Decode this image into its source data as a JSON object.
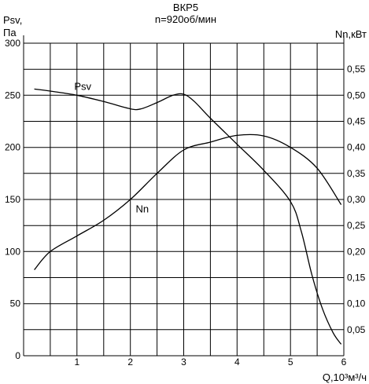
{
  "chart_data": {
    "type": "line",
    "title": "ВКР5",
    "subtitle": "n=920об/мин",
    "y_left_label": [
      "Psv,",
      "Па"
    ],
    "y_right_label": "Nn,кВт",
    "x_label": "Q,10³м³/ч",
    "x_range": [
      0,
      6
    ],
    "x_ticks": [
      "1",
      "2",
      "3",
      "4",
      "5",
      "6"
    ],
    "y_left_range": [
      0,
      300
    ],
    "y_left_ticks": [
      "0",
      "50",
      "100",
      "150",
      "200",
      "250",
      "300"
    ],
    "y_right_range": [
      0,
      0.6
    ],
    "y_right_ticks": [
      "0,05",
      "0,10",
      "0,15",
      "0,20",
      "0,25",
      "0,30",
      "0,35",
      "0,40",
      "0,45",
      "0,50",
      "0,55"
    ],
    "grid": true,
    "line_color": "#000000",
    "series": [
      {
        "name": "Psv",
        "axis": "left",
        "label_at": [
          0.95,
          255
        ],
        "points": [
          [
            0.2,
            256
          ],
          [
            0.5,
            254
          ],
          [
            1.0,
            250
          ],
          [
            1.5,
            244
          ],
          [
            2.0,
            237
          ],
          [
            2.2,
            237
          ],
          [
            2.5,
            243
          ],
          [
            2.8,
            250
          ],
          [
            3.0,
            251
          ],
          [
            3.2,
            244
          ],
          [
            3.5,
            228
          ],
          [
            4.0,
            203
          ],
          [
            4.5,
            178
          ],
          [
            5.0,
            148
          ],
          [
            5.2,
            120
          ],
          [
            5.4,
            78
          ],
          [
            5.6,
            45
          ],
          [
            5.8,
            22
          ],
          [
            5.95,
            11
          ]
        ]
      },
      {
        "name": "Nn",
        "axis": "right",
        "label_at": [
          2.1,
          0.275
        ],
        "points": [
          [
            0.2,
            0.165
          ],
          [
            0.5,
            0.2
          ],
          [
            1.0,
            0.23
          ],
          [
            1.5,
            0.26
          ],
          [
            2.0,
            0.3
          ],
          [
            2.5,
            0.35
          ],
          [
            3.0,
            0.395
          ],
          [
            3.5,
            0.41
          ],
          [
            4.0,
            0.423
          ],
          [
            4.5,
            0.422
          ],
          [
            5.0,
            0.4
          ],
          [
            5.5,
            0.36
          ],
          [
            5.95,
            0.29
          ]
        ]
      }
    ]
  }
}
